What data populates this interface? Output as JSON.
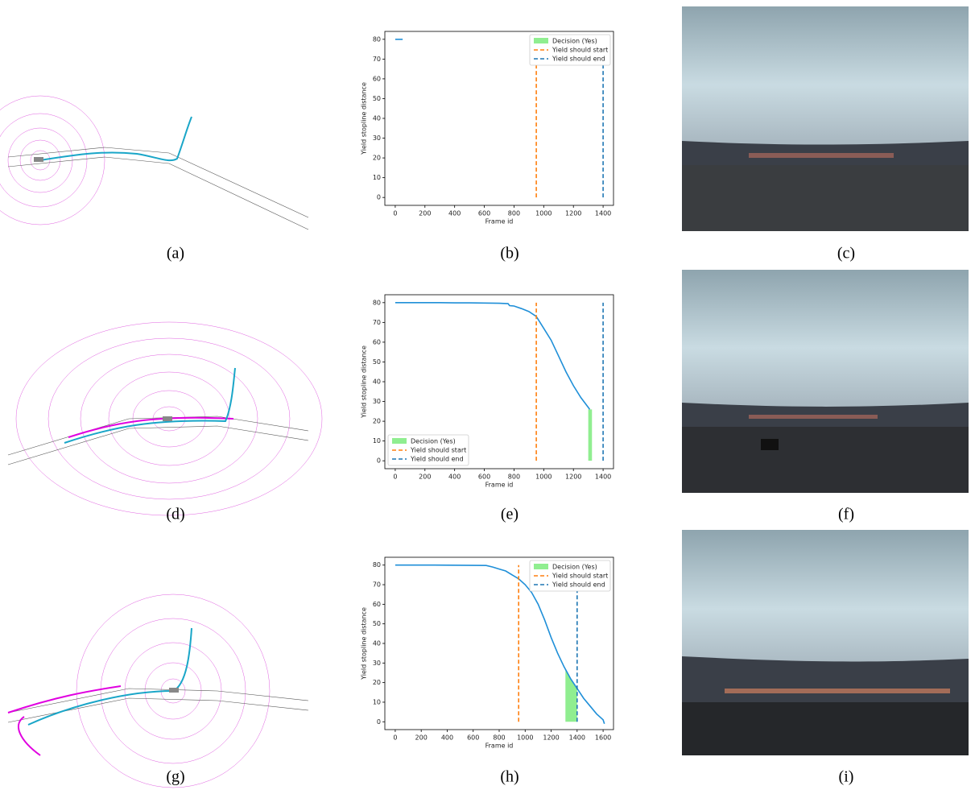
{
  "captions": [
    "(a)",
    "(b)",
    "(c)",
    "(d)",
    "(e)",
    "(f)",
    "(g)",
    "(h)",
    "(i)"
  ],
  "chart_data": [
    {
      "type": "line",
      "xlabel": "Frame id",
      "ylabel": "Yield stopline distance",
      "color": "#1f8fd8",
      "x": [
        0,
        50
      ],
      "values": [
        80,
        80
      ],
      "xlim": [
        -70,
        1470
      ],
      "ylim": [
        -4,
        84
      ],
      "xticks": [
        0,
        200,
        400,
        600,
        800,
        1000,
        1200,
        1400
      ],
      "yticks": [
        0,
        10,
        20,
        30,
        40,
        50,
        60,
        70,
        80
      ],
      "decision": {
        "name": "Decision (Yes)",
        "color": "#90ee90",
        "x": [],
        "values": []
      },
      "vlines": [
        {
          "name": "Yield should start",
          "color": "#ff7f0e",
          "x": 950,
          "y": [
            0,
            80
          ]
        },
        {
          "name": "Yield should end",
          "color": "#1f77b4",
          "x": 1400,
          "y": [
            0,
            80
          ]
        }
      ],
      "legend": "upper right"
    },
    {
      "type": "line",
      "xlabel": "Frame id",
      "ylabel": "Yield stopline distance",
      "color": "#1f8fd8",
      "x": [
        0,
        100,
        200,
        300,
        400,
        500,
        600,
        700,
        760,
        770,
        800,
        850,
        900,
        950,
        1000,
        1050,
        1100,
        1150,
        1200,
        1250,
        1300,
        1310
      ],
      "values": [
        80,
        80,
        80,
        80,
        79.9,
        79.9,
        79.8,
        79.7,
        79.5,
        78.5,
        78.3,
        77,
        75.5,
        73,
        67,
        61,
        53,
        45,
        38,
        32,
        27,
        26
      ],
      "xlim": [
        -70,
        1470
      ],
      "ylim": [
        -4,
        84
      ],
      "xticks": [
        0,
        200,
        400,
        600,
        800,
        1000,
        1200,
        1400
      ],
      "yticks": [
        0,
        10,
        20,
        30,
        40,
        50,
        60,
        70,
        80
      ],
      "decision": {
        "name": "Decision (Yes)",
        "color": "#90ee90",
        "x": [
          1300,
          1325
        ],
        "values": [
          26,
          26
        ]
      },
      "vlines": [
        {
          "name": "Yield should start",
          "color": "#ff7f0e",
          "x": 950,
          "y": [
            0,
            80
          ]
        },
        {
          "name": "Yield should end",
          "color": "#1f77b4",
          "x": 1400,
          "y": [
            0,
            80
          ]
        }
      ],
      "legend": "lower left"
    },
    {
      "type": "line",
      "xlabel": "Frame id",
      "ylabel": "Yield stopline distance",
      "color": "#1f8fd8",
      "x": [
        0,
        300,
        700,
        750,
        800,
        850,
        900,
        950,
        1000,
        1050,
        1100,
        1150,
        1200,
        1250,
        1300,
        1350,
        1400,
        1450,
        1500,
        1550,
        1600,
        1610
      ],
      "values": [
        80,
        80,
        79.8,
        79,
        78,
        77,
        75,
        73,
        70,
        66,
        60,
        52,
        43,
        35,
        28,
        22,
        17,
        12,
        8,
        4,
        1,
        -1
      ],
      "xlim": [
        -80,
        1680
      ],
      "ylim": [
        -4,
        84
      ],
      "xticks": [
        0,
        200,
        400,
        600,
        800,
        1000,
        1200,
        1400,
        1600
      ],
      "yticks": [
        0,
        10,
        20,
        30,
        40,
        50,
        60,
        70,
        80
      ],
      "decision": {
        "name": "Decision (Yes)",
        "color": "#90ee90",
        "x": [
          1310,
          1350,
          1400
        ],
        "values": [
          27,
          22,
          17
        ]
      },
      "vlines": [
        {
          "name": "Yield should start",
          "color": "#ff7f0e",
          "x": 950,
          "y": [
            0,
            80
          ]
        },
        {
          "name": "Yield should end",
          "color": "#1f77b4",
          "x": 1400,
          "y": [
            0,
            80
          ]
        }
      ],
      "legend": "upper right"
    }
  ]
}
